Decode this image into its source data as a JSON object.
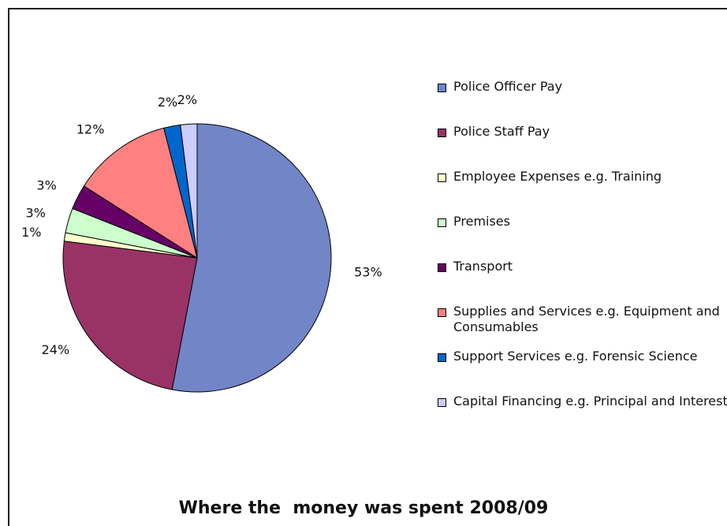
{
  "chart_data": {
    "type": "pie",
    "title": "Where the  money was spent 2008/09",
    "categories": [
      "Police Officer Pay",
      "Police Staff Pay",
      "Employee Expenses e.g. Training",
      "Premises",
      "Transport",
      "Supplies and Services e.g. Equipment and Consumables",
      "Support Services e.g. Forensic Science",
      "Capital Financing e.g. Principal and Interest"
    ],
    "values": [
      53,
      24,
      1,
      3,
      3,
      12,
      2,
      2
    ],
    "value_labels": [
      "53%",
      "24%",
      "1%",
      "3%",
      "3%",
      "12%",
      "2%",
      "2%"
    ],
    "colors": [
      "#7285c6",
      "#993366",
      "#ffffcc",
      "#ccffcc",
      "#660066",
      "#ff8080",
      "#0066cc",
      "#ccccff"
    ],
    "legend": "right"
  }
}
